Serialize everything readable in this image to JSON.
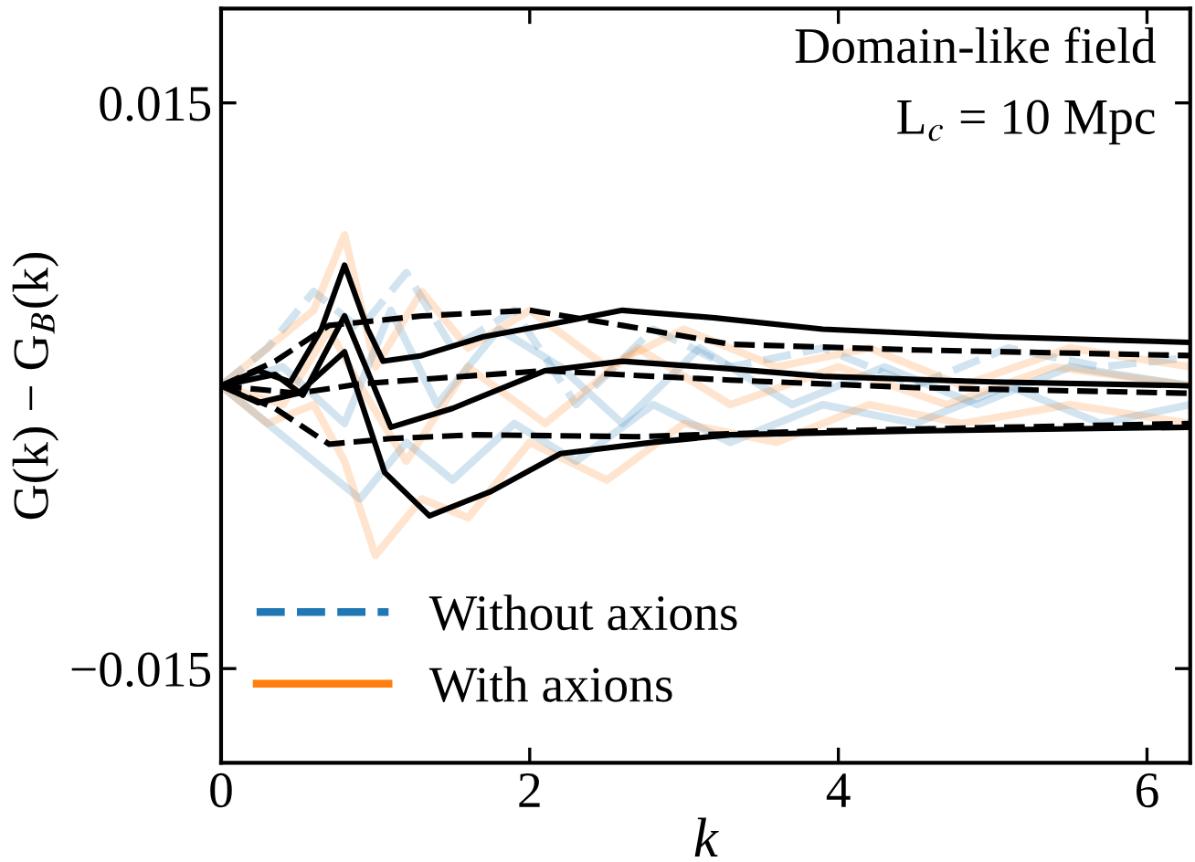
{
  "chart_data": {
    "type": "line",
    "xlabel": "k",
    "ylabel": "G(k) − G$_{B}$(k)",
    "xlim": [
      0,
      6.28
    ],
    "ylim": [
      -0.02,
      0.02
    ],
    "xticks": [
      0,
      2,
      4,
      6
    ],
    "yticks": [
      {
        "value": -0.015,
        "label": "−0.015"
      },
      {
        "value": 0.015,
        "label": "0.015"
      }
    ],
    "grid": false,
    "legend": "bottom left",
    "annotations": [
      "Domain-like field",
      "L$_{c}$ = 10 Mpc"
    ],
    "series": [
      {
        "name": "Without axions",
        "color": "#1f77b4",
        "line_style": "dashed",
        "x": [
          0,
          0.3,
          0.6,
          0.9,
          1.2,
          1.5,
          1.9,
          2.3,
          2.8,
          3.3,
          3.9,
          4.5,
          5.1,
          5.7,
          6.28
        ],
        "values": [
          0,
          0.002,
          0.005,
          0.003,
          0.006,
          0.002,
          0.004,
          -0.001,
          0.003,
          0.001,
          0.002,
          0.0,
          0.002,
          0.001,
          0.0015
        ]
      },
      {
        "color": "#1f77b4",
        "x": [
          0,
          0.3,
          0.6,
          0.9,
          1.2,
          1.5,
          1.9,
          2.3,
          2.8,
          3.3,
          3.9,
          4.5,
          5.1,
          5.7,
          6.28
        ],
        "values": [
          0,
          -0.002,
          -0.004,
          -0.006,
          -0.003,
          -0.005,
          -0.002,
          -0.004,
          -0.001,
          -0.003,
          -0.001,
          -0.002,
          0.0,
          -0.002,
          -0.001
        ]
      },
      {
        "color": "#1f77b4",
        "x": [
          0,
          0.4,
          0.8,
          1.1,
          1.4,
          1.8,
          2.2,
          2.6,
          3.1,
          3.7,
          4.3,
          4.9,
          5.5,
          6.28
        ],
        "values": [
          0,
          0.001,
          -0.002,
          0.004,
          -0.001,
          0.003,
          0.001,
          -0.002,
          0.002,
          -0.001,
          0.001,
          -0.001,
          0.001,
          0.0
        ]
      },
      {
        "name": "With axions",
        "color": "#ff7f0e",
        "line_style": "solid",
        "x": [
          0,
          0.3,
          0.6,
          0.8,
          1.0,
          1.3,
          1.6,
          2.0,
          2.5,
          3.0,
          3.6,
          4.2,
          4.8,
          5.5,
          6.28
        ],
        "values": [
          0,
          0.002,
          0.004,
          0.008,
          0.001,
          0.005,
          0.002,
          0.004,
          0.001,
          0.003,
          0.001,
          0.002,
          0.0,
          0.002,
          0.001
        ]
      },
      {
        "color": "#ff7f0e",
        "x": [
          0,
          0.3,
          0.6,
          0.8,
          1.0,
          1.3,
          1.6,
          2.0,
          2.5,
          3.0,
          3.6,
          4.2,
          4.8,
          5.5,
          6.28
        ],
        "values": [
          0,
          -0.002,
          -0.001,
          -0.004,
          -0.009,
          -0.006,
          -0.007,
          -0.003,
          -0.005,
          -0.002,
          -0.003,
          -0.001,
          -0.002,
          -0.001,
          -0.002
        ]
      },
      {
        "color": "#ff7f0e",
        "x": [
          0,
          0.4,
          0.7,
          0.9,
          1.2,
          1.6,
          2.1,
          2.7,
          3.3,
          4.0,
          4.7,
          5.4,
          6.28
        ],
        "values": [
          0,
          -0.001,
          0.003,
          0.0,
          -0.004,
          0.001,
          -0.002,
          0.002,
          -0.001,
          0.001,
          -0.001,
          0.001,
          0.0
        ]
      },
      {
        "color": "#000000",
        "line_style": "dashed",
        "x": [
          0,
          0.35,
          0.7,
          1.3,
          2.0,
          2.6,
          3.3,
          4.5,
          6.28
        ],
        "values": [
          0,
          0.0013,
          0.0032,
          0.0037,
          0.004,
          0.0032,
          0.0022,
          0.0019,
          0.0016
        ]
      },
      {
        "color": "#000000",
        "line_style": "dashed",
        "x": [
          0,
          0.5,
          0.9,
          1.4,
          2.1,
          2.8,
          3.3,
          4.5,
          6.28
        ],
        "values": [
          0,
          -0.0004,
          0.0001,
          0.0004,
          0.0008,
          0.0005,
          0.0003,
          -0.0001,
          -0.0004
        ]
      },
      {
        "color": "#000000",
        "line_style": "dashed",
        "x": [
          0,
          0.35,
          0.7,
          1.1,
          1.65,
          2.7,
          3.9,
          6.28
        ],
        "values": [
          0,
          -0.0012,
          -0.0031,
          -0.0028,
          -0.0026,
          -0.0027,
          -0.0024,
          -0.002
        ]
      },
      {
        "color": "#000000",
        "line_style": "solid",
        "x": [
          0,
          0.24,
          0.45,
          0.65,
          0.8,
          0.95,
          1.05,
          1.3,
          1.7,
          2.1,
          2.6,
          3.2,
          3.9,
          5.0,
          6.28
        ],
        "values": [
          0,
          0.0008,
          0.0002,
          0.003,
          0.0064,
          0.003,
          0.0013,
          0.0016,
          0.0026,
          0.0032,
          0.004,
          0.0036,
          0.003,
          0.0026,
          0.0023
        ]
      },
      {
        "color": "#000000",
        "line_style": "solid",
        "x": [
          0,
          0.35,
          0.53,
          0.8,
          1.1,
          1.5,
          2.1,
          2.6,
          3.3,
          3.9,
          5.0,
          6.28
        ],
        "values": [
          0,
          0.0006,
          -0.0005,
          0.0037,
          -0.0022,
          -0.0012,
          0.0008,
          0.0013,
          0.0009,
          0.0005,
          0.0002,
          0.0
        ]
      },
      {
        "color": "#000000",
        "line_style": "solid",
        "x": [
          0,
          0.24,
          0.5,
          0.8,
          1.06,
          1.35,
          1.75,
          2.2,
          2.8,
          3.3,
          4.5,
          6.28
        ],
        "values": [
          0,
          -0.0009,
          -0.0004,
          0.0018,
          -0.0046,
          -0.0069,
          -0.0056,
          -0.0036,
          -0.003,
          -0.0026,
          -0.0024,
          -0.0022
        ]
      }
    ]
  }
}
